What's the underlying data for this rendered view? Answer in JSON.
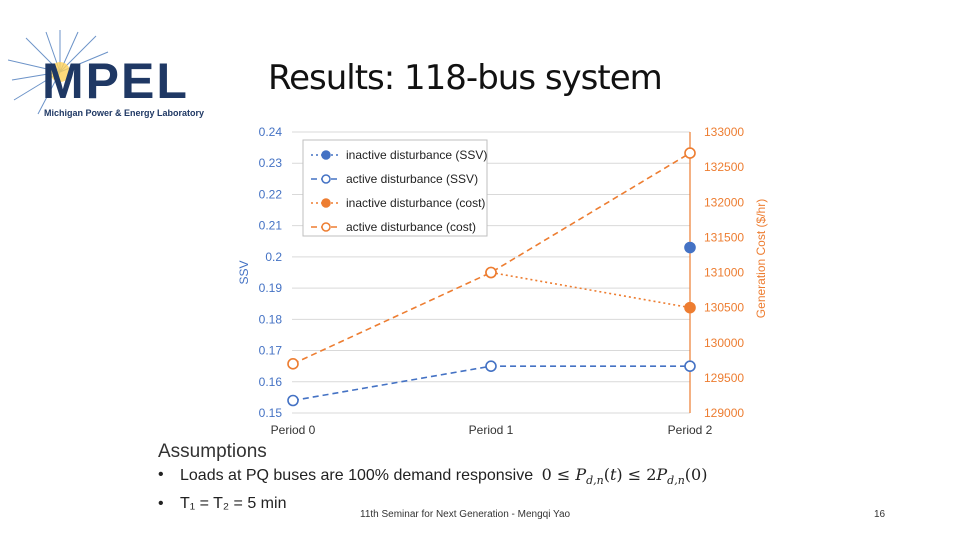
{
  "slide": {
    "logo": {
      "acronym": "MPEL",
      "lab_name": "Michigan Power & Energy Laboratory"
    },
    "title": "Results: 118-bus system",
    "footer": "11th Seminar for Next Generation - Mengqi Yao",
    "page_number": "16"
  },
  "assumptions": {
    "title": "Assumptions",
    "bullet1": "Loads at PQ buses are 100% demand responsive",
    "bullet2": "T₁ = T₂ = 5 min",
    "formula_plain": "0 ≤ P_{d,n}(t) ≤ 2P_{d,n}(0)"
  },
  "chart_data": {
    "type": "line",
    "categories": [
      "Period 0",
      "Period 1",
      "Period 2"
    ],
    "xlabel": "",
    "ylabel_left": "SSV",
    "ylabel_right": "Generation Cost ($/hr)",
    "ylim_left": [
      0.15,
      0.24
    ],
    "ylim_right": [
      129000,
      133000
    ],
    "yticks_left": [
      "0.24",
      "0.23",
      "0.22",
      "0.21",
      "0.2",
      "0.19",
      "0.18",
      "0.17",
      "0.16",
      "0.15"
    ],
    "yticks_right": [
      "133000",
      "132500",
      "132000",
      "131500",
      "131000",
      "130500",
      "130000",
      "129500",
      "129000"
    ],
    "grid": true,
    "legend_position": "top-left",
    "series": [
      {
        "name": "inactive disturbance (SSV)",
        "axis": "left",
        "color": "#4472C4",
        "marker": "filled",
        "line": "dotted",
        "values": [
          null,
          null,
          0.203
        ]
      },
      {
        "name": "active disturbance (SSV)",
        "axis": "left",
        "color": "#4472C4",
        "marker": "hollow",
        "line": "dashed",
        "values": [
          0.154,
          0.165,
          0.165
        ]
      },
      {
        "name": "inactive disturbance (cost)",
        "axis": "right",
        "color": "#ED7D31",
        "marker": "filled",
        "line": "dotted",
        "values": [
          null,
          131000,
          130500
        ]
      },
      {
        "name": "active disturbance (cost)",
        "axis": "right",
        "color": "#ED7D31",
        "marker": "hollow",
        "line": "dashed",
        "values": [
          129700,
          131000,
          132700
        ]
      }
    ]
  }
}
